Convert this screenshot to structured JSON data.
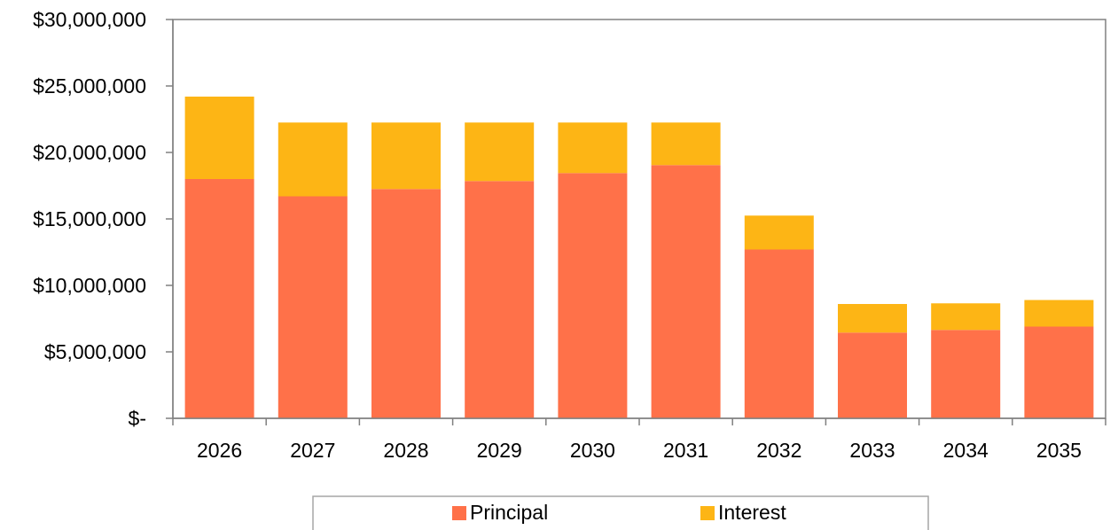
{
  "colors": {
    "principal": "#FF7149",
    "interest": "#FDB515",
    "axis": "#808080",
    "plot_border": "#808080",
    "legend_border": "#a6a6a6"
  },
  "chart_data": {
    "type": "bar",
    "stacked": true,
    "title": "",
    "xlabel": "",
    "ylabel": "",
    "categories": [
      "2026",
      "2027",
      "2028",
      "2029",
      "2030",
      "2031",
      "2032",
      "2033",
      "2034",
      "2035"
    ],
    "series": [
      {
        "name": "Principal",
        "color_key": "principal",
        "values": [
          18000000,
          16700000,
          17250000,
          17850000,
          18450000,
          19050000,
          12700000,
          6450000,
          6650000,
          6900000
        ]
      },
      {
        "name": "Interest",
        "color_key": "interest",
        "values": [
          6200000,
          5550000,
          5000000,
          4400000,
          3800000,
          3200000,
          2550000,
          2150000,
          2000000,
          2000000
        ]
      }
    ],
    "ylim": [
      0,
      30000000
    ],
    "y_ticks": [
      0,
      5000000,
      10000000,
      15000000,
      20000000,
      25000000,
      30000000
    ],
    "y_tick_labels": [
      "$-",
      "$5,000,000",
      "$10,000,000",
      "$15,000,000",
      "$20,000,000",
      "$25,000,000",
      "$30,000,000"
    ],
    "grid": false,
    "legend_position": "bottom"
  }
}
